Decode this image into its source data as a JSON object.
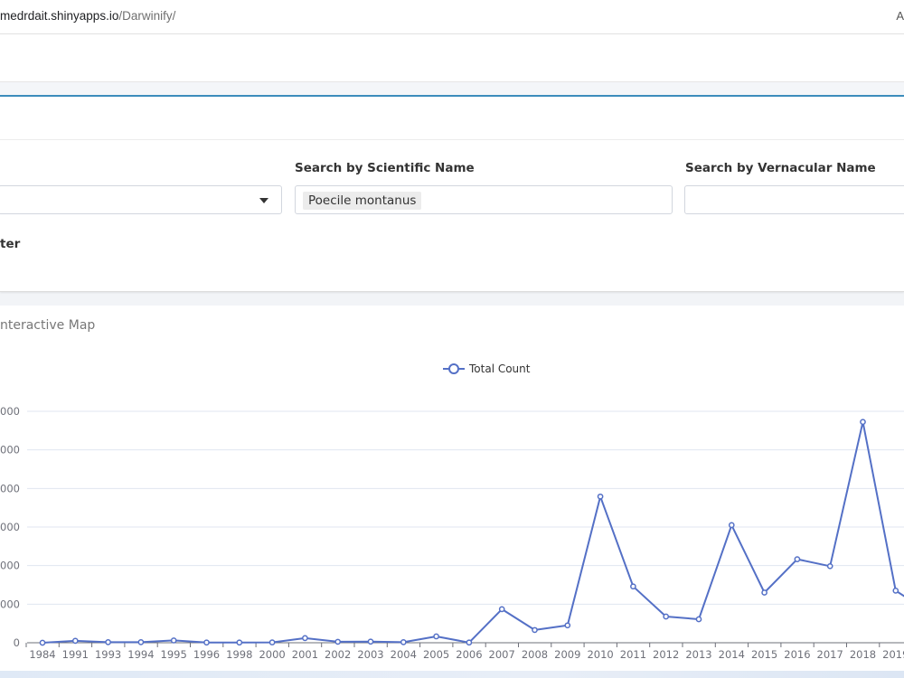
{
  "browser": {
    "url_host": "medrdait.shinyapps.io",
    "url_path": "/Darwinify/",
    "right_text": "A"
  },
  "filters": {
    "scientific_label": "Search by Scientific Name",
    "scientific_value": "Poecile montanus",
    "vernacular_label": "Search by Vernacular Name",
    "vernacular_value": "",
    "partial_label": "ter"
  },
  "chart_tab": {
    "title": "nteractive Map"
  },
  "colors": {
    "series": "#5470c6",
    "accent": "#3c8dbc"
  },
  "chart_data": {
    "type": "line",
    "legend": [
      "Total Count"
    ],
    "legend_position": "top-center",
    "grid": true,
    "y_tick_labels": [
      "0",
      ",000",
      ",000",
      ",000",
      ",000",
      ",000",
      ",000"
    ],
    "categories": [
      "1984",
      "1991",
      "1993",
      "1994",
      "1995",
      "1996",
      "1998",
      "2000",
      "2001",
      "2002",
      "2003",
      "2004",
      "2005",
      "2006",
      "2007",
      "2008",
      "2009",
      "2010",
      "2011",
      "2012",
      "2013",
      "2014",
      "2015",
      "2016",
      "2017",
      "2018",
      "2019"
    ],
    "series": [
      {
        "name": "Total Count",
        "values": [
          0,
          0.1,
          0.03,
          0.03,
          0.12,
          0.01,
          0.01,
          0.02,
          0.24,
          0.05,
          0.06,
          0.03,
          0.33,
          0.01,
          1.74,
          0.66,
          0.9,
          7.58,
          2.92,
          1.36,
          1.22,
          6.1,
          2.6,
          4.33,
          3.97,
          11.45,
          2.7
        ],
        "trailing_value": 1.6
      }
    ],
    "ylim": [
      0,
      12
    ]
  }
}
